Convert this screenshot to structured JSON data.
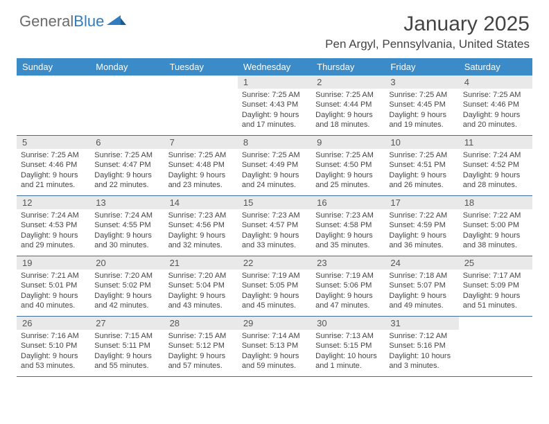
{
  "logo": {
    "text1": "General",
    "text2": "Blue"
  },
  "title": "January 2025",
  "location": "Pen Argyl, Pennsylvania, United States",
  "colors": {
    "header_bg": "#3b8bc9",
    "daynum_bg": "#e9e9e9",
    "border": "#3b6fa0",
    "logo_gray": "#6b6b6b",
    "logo_blue": "#2f7dc0"
  },
  "weekdays": [
    "Sunday",
    "Monday",
    "Tuesday",
    "Wednesday",
    "Thursday",
    "Friday",
    "Saturday"
  ],
  "weeks": [
    [
      null,
      null,
      null,
      {
        "n": "1",
        "sunrise": "7:25 AM",
        "sunset": "4:43 PM",
        "daylight": "9 hours and 17 minutes."
      },
      {
        "n": "2",
        "sunrise": "7:25 AM",
        "sunset": "4:44 PM",
        "daylight": "9 hours and 18 minutes."
      },
      {
        "n": "3",
        "sunrise": "7:25 AM",
        "sunset": "4:45 PM",
        "daylight": "9 hours and 19 minutes."
      },
      {
        "n": "4",
        "sunrise": "7:25 AM",
        "sunset": "4:46 PM",
        "daylight": "9 hours and 20 minutes."
      }
    ],
    [
      {
        "n": "5",
        "sunrise": "7:25 AM",
        "sunset": "4:46 PM",
        "daylight": "9 hours and 21 minutes."
      },
      {
        "n": "6",
        "sunrise": "7:25 AM",
        "sunset": "4:47 PM",
        "daylight": "9 hours and 22 minutes."
      },
      {
        "n": "7",
        "sunrise": "7:25 AM",
        "sunset": "4:48 PM",
        "daylight": "9 hours and 23 minutes."
      },
      {
        "n": "8",
        "sunrise": "7:25 AM",
        "sunset": "4:49 PM",
        "daylight": "9 hours and 24 minutes."
      },
      {
        "n": "9",
        "sunrise": "7:25 AM",
        "sunset": "4:50 PM",
        "daylight": "9 hours and 25 minutes."
      },
      {
        "n": "10",
        "sunrise": "7:25 AM",
        "sunset": "4:51 PM",
        "daylight": "9 hours and 26 minutes."
      },
      {
        "n": "11",
        "sunrise": "7:24 AM",
        "sunset": "4:52 PM",
        "daylight": "9 hours and 28 minutes."
      }
    ],
    [
      {
        "n": "12",
        "sunrise": "7:24 AM",
        "sunset": "4:53 PM",
        "daylight": "9 hours and 29 minutes."
      },
      {
        "n": "13",
        "sunrise": "7:24 AM",
        "sunset": "4:55 PM",
        "daylight": "9 hours and 30 minutes."
      },
      {
        "n": "14",
        "sunrise": "7:23 AM",
        "sunset": "4:56 PM",
        "daylight": "9 hours and 32 minutes."
      },
      {
        "n": "15",
        "sunrise": "7:23 AM",
        "sunset": "4:57 PM",
        "daylight": "9 hours and 33 minutes."
      },
      {
        "n": "16",
        "sunrise": "7:23 AM",
        "sunset": "4:58 PM",
        "daylight": "9 hours and 35 minutes."
      },
      {
        "n": "17",
        "sunrise": "7:22 AM",
        "sunset": "4:59 PM",
        "daylight": "9 hours and 36 minutes."
      },
      {
        "n": "18",
        "sunrise": "7:22 AM",
        "sunset": "5:00 PM",
        "daylight": "9 hours and 38 minutes."
      }
    ],
    [
      {
        "n": "19",
        "sunrise": "7:21 AM",
        "sunset": "5:01 PM",
        "daylight": "9 hours and 40 minutes."
      },
      {
        "n": "20",
        "sunrise": "7:20 AM",
        "sunset": "5:02 PM",
        "daylight": "9 hours and 42 minutes."
      },
      {
        "n": "21",
        "sunrise": "7:20 AM",
        "sunset": "5:04 PM",
        "daylight": "9 hours and 43 minutes."
      },
      {
        "n": "22",
        "sunrise": "7:19 AM",
        "sunset": "5:05 PM",
        "daylight": "9 hours and 45 minutes."
      },
      {
        "n": "23",
        "sunrise": "7:19 AM",
        "sunset": "5:06 PM",
        "daylight": "9 hours and 47 minutes."
      },
      {
        "n": "24",
        "sunrise": "7:18 AM",
        "sunset": "5:07 PM",
        "daylight": "9 hours and 49 minutes."
      },
      {
        "n": "25",
        "sunrise": "7:17 AM",
        "sunset": "5:09 PM",
        "daylight": "9 hours and 51 minutes."
      }
    ],
    [
      {
        "n": "26",
        "sunrise": "7:16 AM",
        "sunset": "5:10 PM",
        "daylight": "9 hours and 53 minutes."
      },
      {
        "n": "27",
        "sunrise": "7:15 AM",
        "sunset": "5:11 PM",
        "daylight": "9 hours and 55 minutes."
      },
      {
        "n": "28",
        "sunrise": "7:15 AM",
        "sunset": "5:12 PM",
        "daylight": "9 hours and 57 minutes."
      },
      {
        "n": "29",
        "sunrise": "7:14 AM",
        "sunset": "5:13 PM",
        "daylight": "9 hours and 59 minutes."
      },
      {
        "n": "30",
        "sunrise": "7:13 AM",
        "sunset": "5:15 PM",
        "daylight": "10 hours and 1 minute."
      },
      {
        "n": "31",
        "sunrise": "7:12 AM",
        "sunset": "5:16 PM",
        "daylight": "10 hours and 3 minutes."
      },
      null
    ]
  ],
  "labels": {
    "sunrise": "Sunrise:",
    "sunset": "Sunset:",
    "daylight": "Daylight:"
  }
}
